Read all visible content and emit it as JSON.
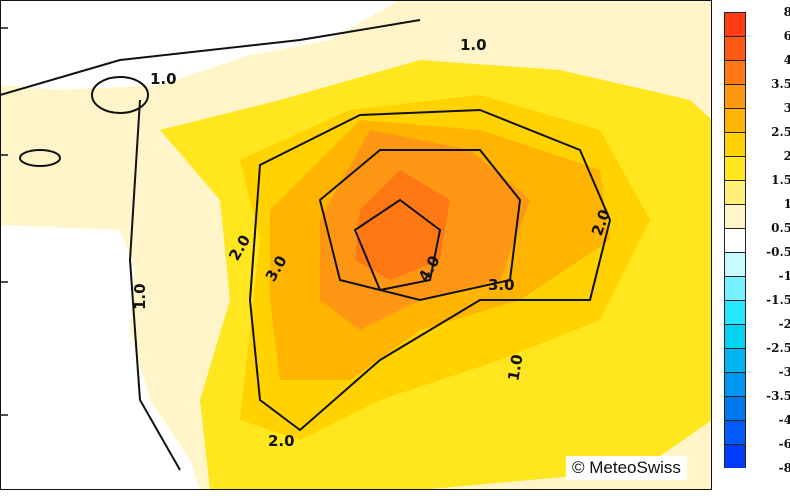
{
  "legend": {
    "labels": [
      "8",
      "6",
      "4",
      "3.5",
      "3",
      "2.5",
      "2",
      "1.5",
      "1",
      "0.5",
      "-0.5",
      "-1",
      "-1.5",
      "-2",
      "-2.5",
      "-3",
      "-3.5",
      "-4",
      "-6",
      "-8"
    ],
    "colors": [
      "#ff3c14",
      "#ff5a14",
      "#ff7814",
      "#ff9614",
      "#ffb400",
      "#ffd200",
      "#ffe61e",
      "#fff078",
      "#fff5c8",
      "#ffffff",
      "#c8faff",
      "#78f0ff",
      "#28e6ff",
      "#00d2f0",
      "#00b4f0",
      "#0096f0",
      "#0078f0",
      "#005aff",
      "#003cff"
    ]
  },
  "contour_labels": [
    "1.0",
    "1.0",
    "1.0",
    "1.0",
    "2.0",
    "2.0",
    "2.0",
    "3.0",
    "3.0",
    "4.0",
    "1.0"
  ],
  "copyright": "© MeteoSwiss"
}
